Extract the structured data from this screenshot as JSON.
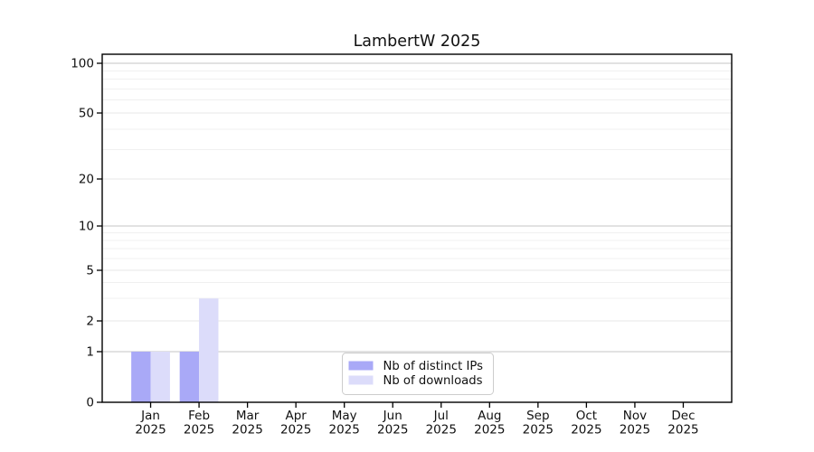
{
  "chart_data": {
    "type": "bar",
    "title": "LambertW 2025",
    "categories": [
      "Jan 2025",
      "Feb 2025",
      "Mar 2025",
      "Apr 2025",
      "May 2025",
      "Jun 2025",
      "Jul 2025",
      "Aug 2025",
      "Sep 2025",
      "Oct 2025",
      "Nov 2025",
      "Dec 2025"
    ],
    "series": [
      {
        "name": "Nb of distinct IPs",
        "color": "#a9a9f7",
        "values": [
          1,
          1,
          0,
          0,
          0,
          0,
          0,
          0,
          0,
          0,
          0,
          0
        ]
      },
      {
        "name": "Nb of downloads",
        "color": "#dcdcfa",
        "values": [
          1,
          3,
          0,
          0,
          0,
          0,
          0,
          0,
          0,
          0,
          0,
          0
        ]
      }
    ],
    "yaxis": {
      "tick_labels": [
        0,
        1,
        2,
        5,
        10,
        20,
        50,
        100
      ],
      "decade_lines": [
        1,
        10,
        100
      ],
      "minor_gridlines": [
        3,
        4,
        6,
        7,
        8,
        9,
        30,
        40,
        60,
        70,
        80,
        90
      ],
      "scale": "log above 1, linear 0-1",
      "ymin": 0
    },
    "legend": {
      "position": "lower center",
      "entries": [
        "Nb of distinct IPs",
        "Nb of downloads"
      ]
    },
    "grid": {
      "horizontal": true,
      "vertical": false
    }
  },
  "colors": {
    "background": "#ffffff",
    "axis": "#000000",
    "decade_gridline": "#c6c6c6",
    "labeled_gridline": "#e7e7e7",
    "minor_gridline": "#f0f0f0",
    "legend_border": "#cccccc",
    "legend_background": "#ffffff",
    "text": "#111111"
  }
}
